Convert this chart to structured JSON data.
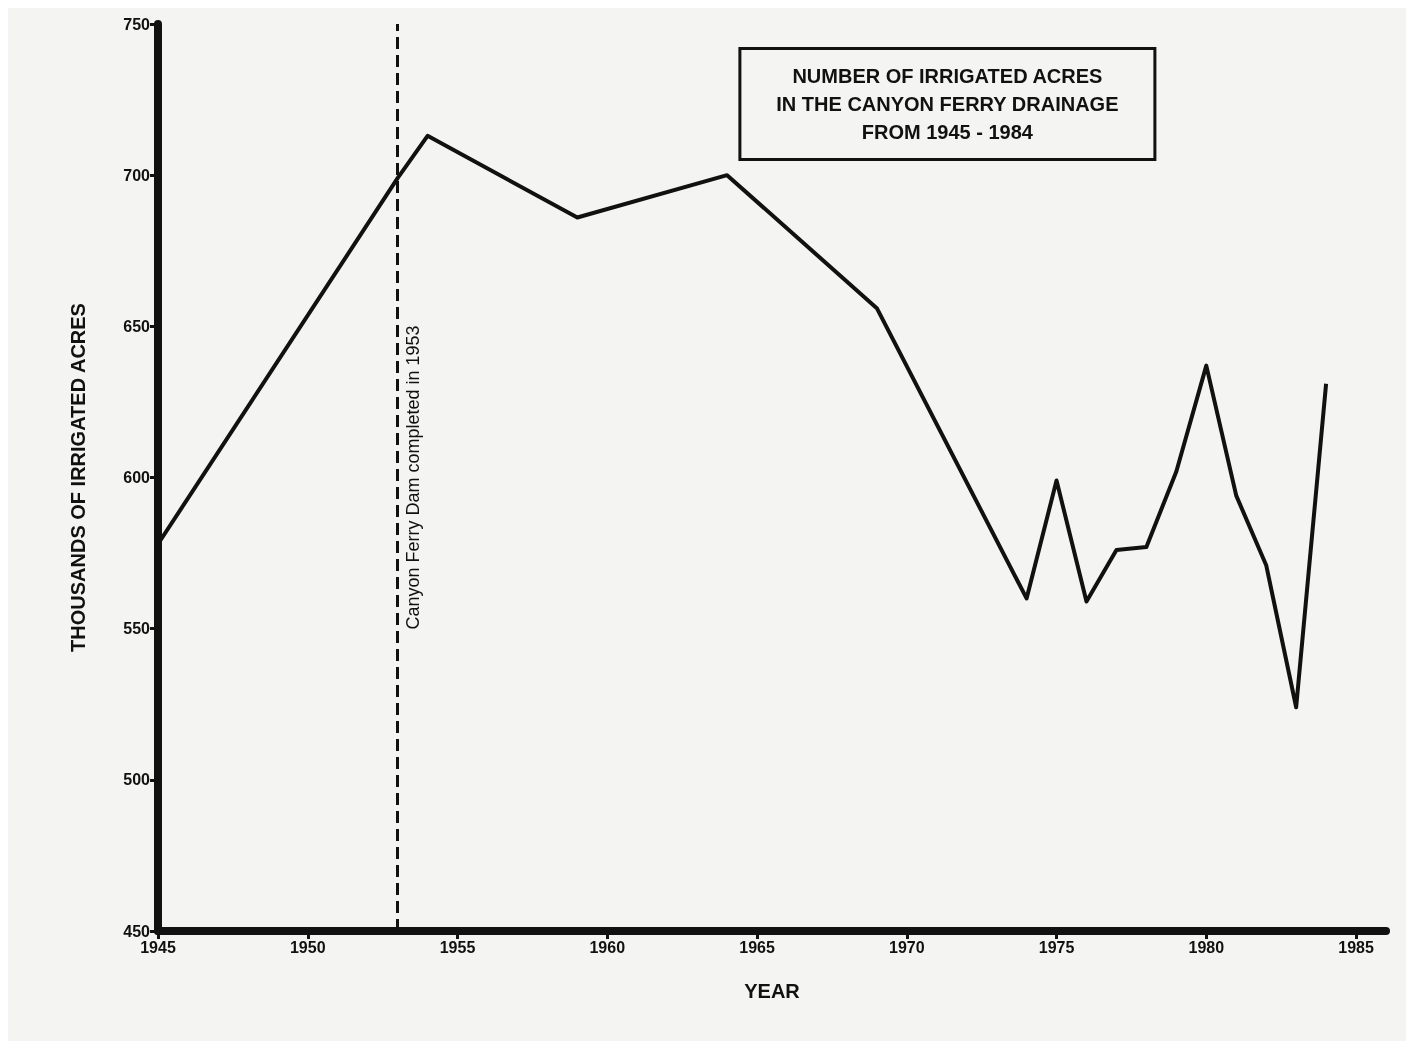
{
  "chart_data": {
    "type": "line",
    "title": "NUMBER OF IRRIGATED ACRES\nIN THE CANYON FERRY DRAINAGE\nFROM 1945 - 1984",
    "xlabel": "YEAR",
    "ylabel": "THOUSANDS OF IRRIGATED ACRES",
    "x": [
      1945,
      1953,
      1954,
      1959,
      1964,
      1969,
      1974,
      1975,
      1976,
      1977,
      1978,
      1979,
      1980,
      1981,
      1982,
      1983,
      1984
    ],
    "series": [
      {
        "color": "#111111",
        "values": [
          578,
          699,
          713,
          686,
          700,
          656,
          560,
          599,
          559,
          576,
          577,
          602,
          637,
          594,
          571,
          524,
          631
        ]
      }
    ],
    "xlim": [
      1945,
      1986
    ],
    "xticks": [
      1945,
      1950,
      1955,
      1960,
      1965,
      1970,
      1975,
      1980,
      1985
    ],
    "ylim": [
      450,
      750
    ],
    "yticks": [
      450,
      500,
      550,
      600,
      650,
      700,
      750
    ],
    "ref_lines": [
      {
        "axis": "x",
        "value": 1953,
        "label": "Canyon Ferry Dam completed in 1953",
        "color": "#111111",
        "line_style": "dashed"
      }
    ],
    "grid": false,
    "marker": "none",
    "line_style": "solid"
  }
}
